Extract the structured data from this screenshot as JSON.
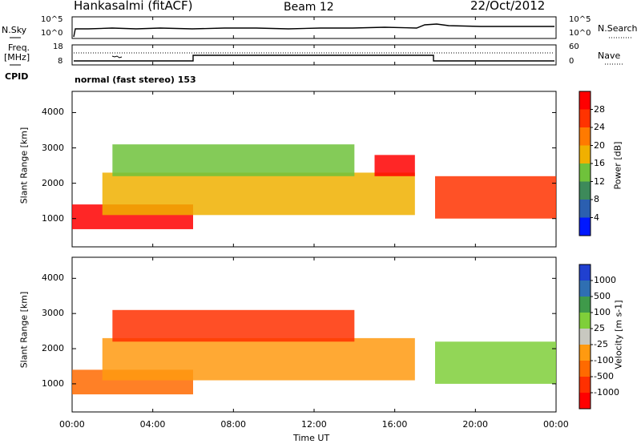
{
  "header": {
    "station": "Hankasalmi (fitACF)",
    "beam": "Beam 12",
    "date": "22/Oct/2012"
  },
  "top_panels": {
    "nsky_label": "N.Sky",
    "nsky_ticks": [
      "10^5",
      "10^0"
    ],
    "nsearch_label": "N.Search",
    "nsearch_ticks": [
      "10^5",
      "10^0"
    ],
    "freq_label": "Freq.",
    "freq_unit": "[MHz]",
    "freq_ticks": [
      "18",
      "8"
    ],
    "nave_label": "Nave",
    "nave_ticks": [
      "60",
      "0"
    ],
    "cpid_label": "CPID",
    "cpid_value": "normal (fast stereo) 153"
  },
  "colors": {
    "power": [
      "#0018ff",
      "#2b5fb0",
      "#3d8a5a",
      "#6fc23b",
      "#f0b000",
      "#ff7a00",
      "#ff3300",
      "#ff0000"
    ],
    "velocity": [
      "#2040d0",
      "#2f6fb2",
      "#3f9a4a",
      "#7fcf3a",
      "#c8c8c0",
      "#ff9a10",
      "#ff6a00",
      "#ff3000",
      "#ff0000"
    ]
  },
  "chart_data": [
    {
      "type": "heatmap",
      "ylabel": "Slant Range [km]",
      "yticks": [
        "1000",
        "2000",
        "3000",
        "4000"
      ],
      "ylim": [
        200,
        4600
      ],
      "xlim": [
        "00:00",
        "24:00"
      ],
      "colorbar": {
        "label": "Power [dB]",
        "ticks": [
          "4",
          "8",
          "12",
          "16",
          "20",
          "24",
          "28"
        ],
        "range": [
          0,
          32
        ]
      },
      "echo_regions": [
        {
          "x_start_hr": 0.0,
          "x_end_hr": 6.0,
          "range_km": [
            700,
            1400
          ],
          "value": 28
        },
        {
          "x_start_hr": 1.5,
          "x_end_hr": 17.0,
          "range_km": [
            1100,
            2300
          ],
          "value": 18
        },
        {
          "x_start_hr": 2.0,
          "x_end_hr": 14.0,
          "range_km": [
            2200,
            3100
          ],
          "value": 14
        },
        {
          "x_start_hr": 15.0,
          "x_end_hr": 17.0,
          "range_km": [
            2200,
            2800
          ],
          "value": 28
        },
        {
          "x_start_hr": 18.0,
          "x_end_hr": 24.0,
          "range_km": [
            1000,
            2200
          ],
          "value": 26
        }
      ]
    },
    {
      "type": "heatmap",
      "ylabel": "Slant Range [km]",
      "yticks": [
        "1000",
        "2000",
        "3000",
        "4000"
      ],
      "ylim": [
        200,
        4600
      ],
      "xlim": [
        "00:00",
        "24:00"
      ],
      "xticks": [
        "00:00",
        "04:00",
        "08:00",
        "12:00",
        "16:00",
        "20:00",
        "00:00"
      ],
      "xlabel": "Time UT",
      "colorbar": {
        "label": "Velocity [m s-1]",
        "ticks": [
          "1000",
          "500",
          "100",
          "25",
          "-25",
          "-100",
          "-500",
          "-1000"
        ]
      },
      "echo_regions": [
        {
          "x_start_hr": 0.0,
          "x_end_hr": 6.0,
          "range_km": [
            700,
            1400
          ],
          "value": -100
        },
        {
          "x_start_hr": 1.5,
          "x_end_hr": 17.0,
          "range_km": [
            1100,
            2300
          ],
          "value": 0
        },
        {
          "x_start_hr": 2.0,
          "x_end_hr": 14.0,
          "range_km": [
            2200,
            3100
          ],
          "value": -200
        },
        {
          "x_start_hr": 18.0,
          "x_end_hr": 24.0,
          "range_km": [
            1000,
            2200
          ],
          "value": 150
        }
      ]
    }
  ]
}
